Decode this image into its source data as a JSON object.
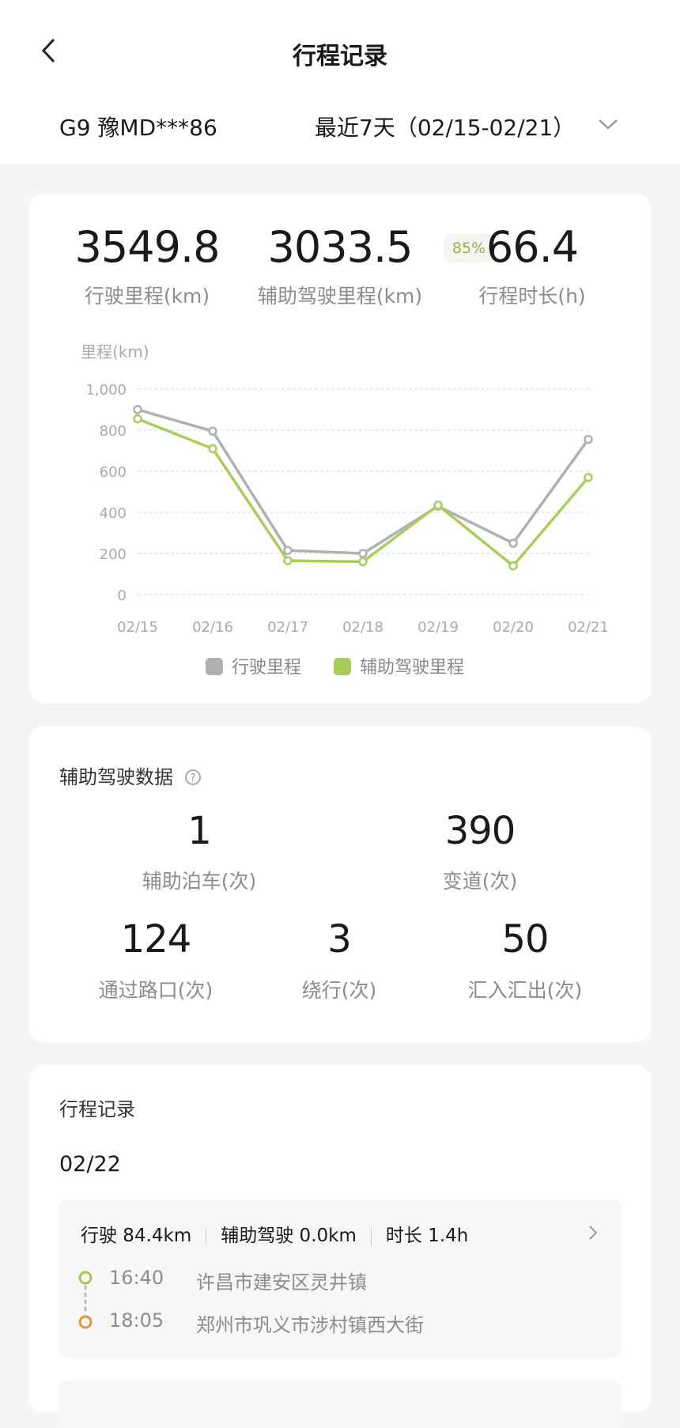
{
  "header": {
    "title": "行程记录",
    "back_icon": "chevron-left-icon"
  },
  "vehicle": {
    "name": "G9 豫MD***86",
    "range_label": "最近7天（02/15-02/21）",
    "dropdown_icon": "chevron-down-icon"
  },
  "summary": {
    "total_km": "3549.8",
    "total_km_label": "行驶里程(km)",
    "assist_km": "3033.5",
    "assist_km_label": "辅助驾驶里程(km)",
    "assist_ratio": "85%",
    "duration": "66.4",
    "duration_label": "行程时长(h)"
  },
  "chart_data": {
    "type": "line",
    "ylabel": "里程(km)",
    "ylim": [
      0,
      1000
    ],
    "yticks": [
      "0",
      "200",
      "400",
      "600",
      "800",
      "1,000"
    ],
    "categories": [
      "02/15",
      "02/16",
      "02/17",
      "02/18",
      "02/19",
      "02/20",
      "02/21"
    ],
    "grid": true,
    "legend_placement": "bottom",
    "series": [
      {
        "name": "行驶里程",
        "color": "#b0b0b4",
        "values": [
          900,
          795,
          215,
          200,
          430,
          250,
          755
        ]
      },
      {
        "name": "辅助驾驶里程",
        "color": "#a6cf5a",
        "values": [
          855,
          710,
          165,
          160,
          435,
          140,
          570
        ]
      }
    ]
  },
  "assist": {
    "title": "辅助驾驶数据",
    "help_icon": "question-circle-icon",
    "stats": [
      {
        "value": "1",
        "label": "辅助泊车(次)"
      },
      {
        "value": "390",
        "label": "变道(次)"
      },
      {
        "value": "124",
        "label": "通过路口(次)"
      },
      {
        "value": "3",
        "label": "绕行(次)"
      },
      {
        "value": "50",
        "label": "汇入汇出(次)"
      }
    ]
  },
  "trips": {
    "title": "行程记录",
    "date": "02/22",
    "items": [
      {
        "drive": "行驶 84.4km",
        "assist": "辅助驾驶 0.0km",
        "duration": "时长 1.4h",
        "start_time": "16:40",
        "start_place": "许昌市建安区灵井镇",
        "end_time": "18:05",
        "end_place": "郑州市巩义市涉村镇西大街"
      }
    ]
  }
}
